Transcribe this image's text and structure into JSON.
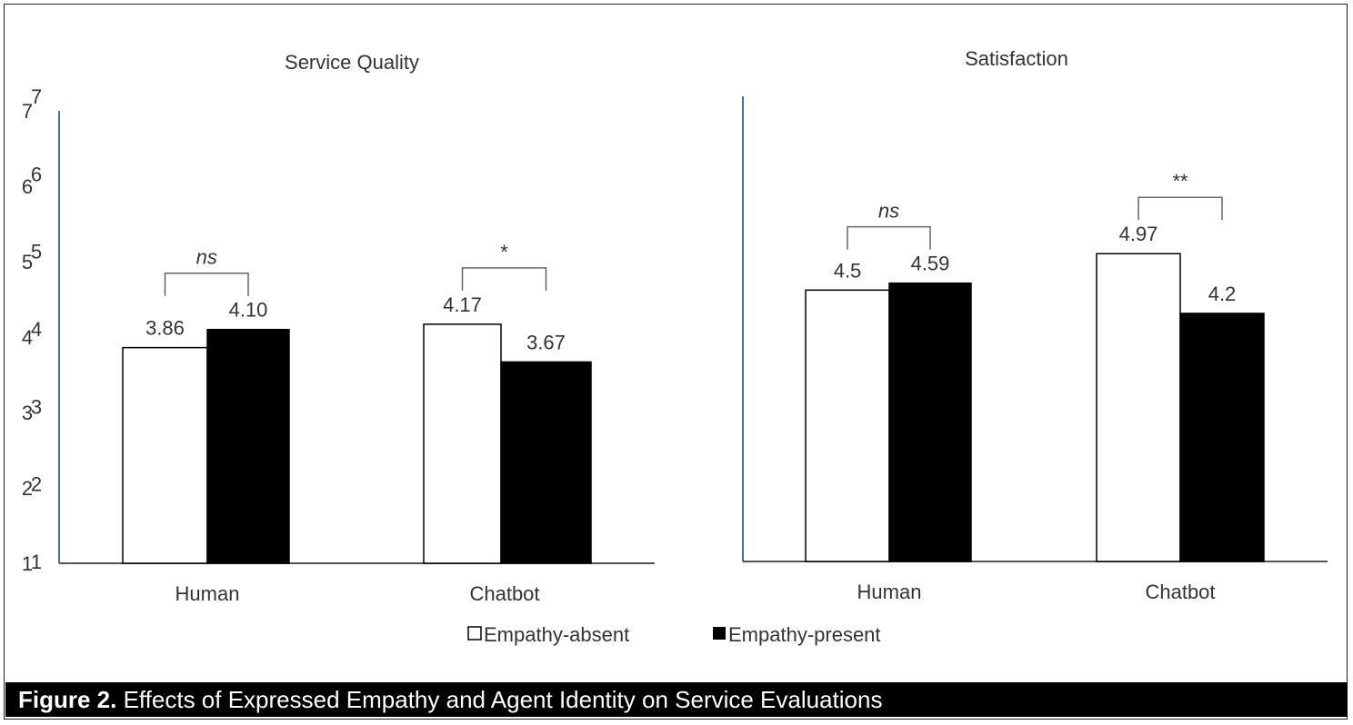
{
  "legend": [
    "Empathy-absent",
    "Empathy-present"
  ],
  "caption": {
    "label": "Figure 2.",
    "text": " Effects of Expressed Empathy and Agent Identity on Service Evaluations"
  },
  "colors": {
    "absent": "#ffffff",
    "present": "#000000",
    "axis": "#4a6aa8"
  },
  "chart_data": [
    {
      "type": "bar",
      "title": "Service Quality",
      "categories": [
        "Human",
        "Chatbot"
      ],
      "series": [
        {
          "name": "Empathy-absent",
          "values": [
            3.86,
            4.17
          ],
          "labels": [
            "3.86",
            "4.17"
          ]
        },
        {
          "name": "Empathy-present",
          "values": [
            4.1,
            3.67
          ],
          "labels": [
            "4.10",
            "3.67"
          ]
        }
      ],
      "significance": [
        "ns",
        "*"
      ],
      "ylim": [
        1,
        7
      ],
      "yticks": [
        "1",
        "2",
        "3",
        "4",
        "5",
        "6",
        "7"
      ]
    },
    {
      "type": "bar",
      "title": "Satisfaction",
      "categories": [
        "Human",
        "Chatbot"
      ],
      "series": [
        {
          "name": "Empathy-absent",
          "values": [
            4.5,
            4.97
          ],
          "labels": [
            "4.5",
            "4.97"
          ]
        },
        {
          "name": "Empathy-present",
          "values": [
            4.59,
            4.2
          ],
          "labels": [
            "4.59",
            "4.2"
          ]
        }
      ],
      "significance": [
        "ns",
        "**"
      ],
      "ylim": [
        1,
        7
      ],
      "yticks": [
        "1",
        "2",
        "3",
        "4",
        "5",
        "6",
        "7"
      ]
    }
  ]
}
